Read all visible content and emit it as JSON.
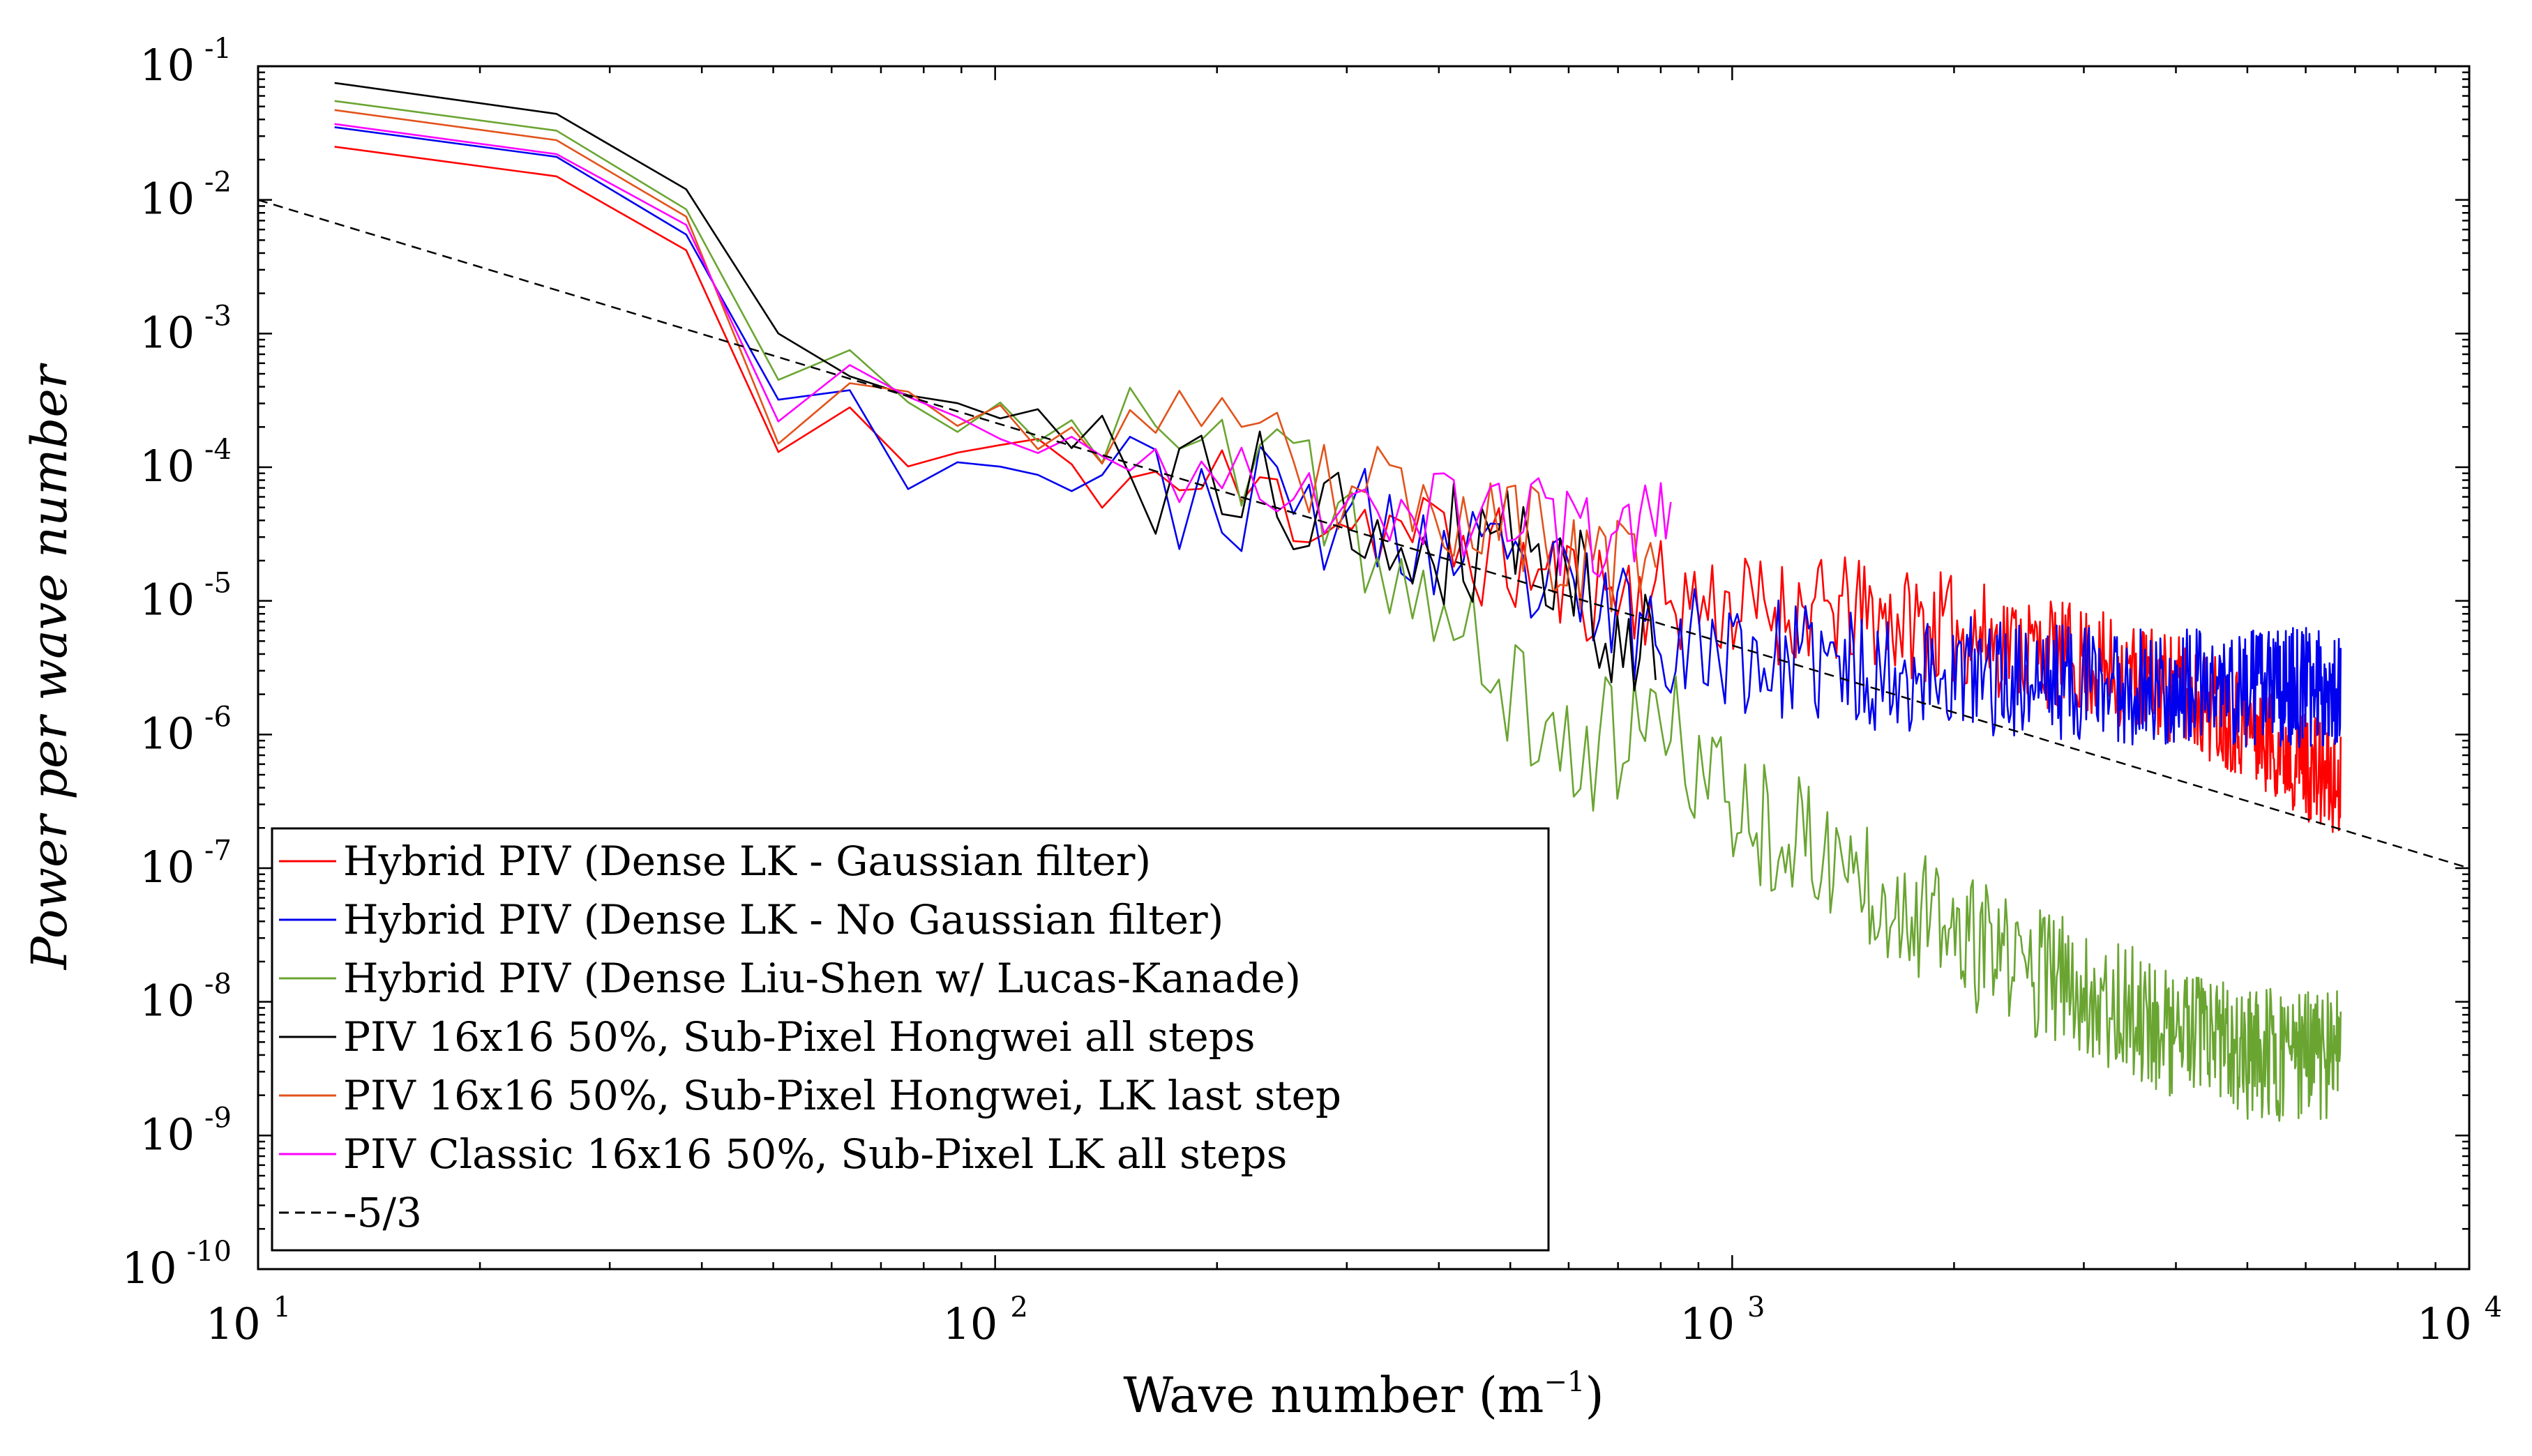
{
  "chart_data": {
    "type": "line",
    "scale": {
      "x": "log",
      "y": "log"
    },
    "xlim": [
      10,
      10000
    ],
    "ylim": [
      1e-10,
      0.1
    ],
    "xlabel": "Wave number (m",
    "xlabel_exponent": "−1",
    "xlabel_close": ")",
    "ylabel": "Power per wave number",
    "x_ticks": [
      {
        "value": 10,
        "base": "10",
        "exp": "1"
      },
      {
        "value": 100,
        "base": "10",
        "exp": "2"
      },
      {
        "value": 1000,
        "base": "10",
        "exp": "3"
      },
      {
        "value": 10000,
        "base": "10",
        "exp": "4"
      }
    ],
    "y_ticks": [
      {
        "value": 0.1,
        "base": "10",
        "exp": "-1"
      },
      {
        "value": 0.01,
        "base": "10",
        "exp": "-2"
      },
      {
        "value": 0.001,
        "base": "10",
        "exp": "-3"
      },
      {
        "value": 0.0001,
        "base": "10",
        "exp": "-4"
      },
      {
        "value": 1e-05,
        "base": "10",
        "exp": "-5"
      },
      {
        "value": 1e-06,
        "base": "10",
        "exp": "-6"
      },
      {
        "value": 1e-07,
        "base": "10",
        "exp": "-7"
      },
      {
        "value": 1e-08,
        "base": "10",
        "exp": "-8"
      },
      {
        "value": 1e-09,
        "base": "10",
        "exp": "-9"
      },
      {
        "value": 1e-10,
        "base": "10",
        "exp": "-10"
      }
    ],
    "legend_location": "bottom-left",
    "series": [
      {
        "name": "Hybrid PIV (Dense LK - Gaussian filter)",
        "color": "#ff0000",
        "style": "solid",
        "k_min": 12.7,
        "k_step": 12.7,
        "k_max": 6700,
        "anchors": [
          [
            12.7,
            0.025
          ],
          [
            25.4,
            0.015
          ],
          [
            38.1,
            0.0042
          ],
          [
            50.8,
            0.00013
          ],
          [
            63.5,
            0.00028
          ],
          [
            76,
            0.0001
          ],
          [
            100,
            0.00014
          ],
          [
            150,
            8e-05
          ],
          [
            200,
            7e-05
          ],
          [
            300,
            4.5e-05
          ],
          [
            400,
            2.8e-05
          ],
          [
            600,
            1.3e-05
          ],
          [
            800,
            1.1e-05
          ],
          [
            1000,
            9e-06
          ],
          [
            1500,
            8e-06
          ],
          [
            2000,
            6e-06
          ],
          [
            3000,
            3.5e-06
          ],
          [
            4000,
            2.2e-06
          ],
          [
            5000,
            1.2e-06
          ],
          [
            6700,
            4e-07
          ]
        ],
        "noise": 0.42,
        "seed": 11
      },
      {
        "name": "Hybrid PIV (Dense LK - No Gaussian filter)",
        "color": "#0000ee",
        "style": "solid",
        "k_min": 12.7,
        "k_step": 12.7,
        "k_max": 6700,
        "anchors": [
          [
            12.7,
            0.035
          ],
          [
            25.4,
            0.021
          ],
          [
            38.1,
            0.0055
          ],
          [
            50.8,
            0.00032
          ],
          [
            63.5,
            0.0004
          ],
          [
            76,
            8e-05
          ],
          [
            100,
            0.00012
          ],
          [
            150,
            8e-05
          ],
          [
            200,
            6e-05
          ],
          [
            300,
            4e-05
          ],
          [
            400,
            2.2e-05
          ],
          [
            600,
            1.1e-05
          ],
          [
            800,
            6e-06
          ],
          [
            1000,
            4e-06
          ],
          [
            1500,
            3e-06
          ],
          [
            2000,
            2.8e-06
          ],
          [
            3000,
            2.5e-06
          ],
          [
            4000,
            2.2e-06
          ],
          [
            5000,
            2.2e-06
          ],
          [
            6700,
            2.3e-06
          ]
        ],
        "noise": 0.45,
        "seed": 23
      },
      {
        "name": "Hybrid PIV (Dense Liu-Shen w/ Lucas-Kanade)",
        "color": "#6aa532",
        "style": "solid",
        "k_min": 12.7,
        "k_step": 12.7,
        "k_max": 6700,
        "anchors": [
          [
            12.7,
            0.055
          ],
          [
            25.4,
            0.033
          ],
          [
            38.1,
            0.0085
          ],
          [
            50.8,
            0.00045
          ],
          [
            63.5,
            0.00075
          ],
          [
            76,
            0.00025
          ],
          [
            100,
            0.00025
          ],
          [
            150,
            0.00017
          ],
          [
            200,
            0.00012
          ],
          [
            300,
            4e-05
          ],
          [
            400,
            7e-06
          ],
          [
            500,
            2e-06
          ],
          [
            600,
            7e-07
          ],
          [
            800,
            1.2e-06
          ],
          [
            1000,
            3e-07
          ],
          [
            1500,
            9e-08
          ],
          [
            2000,
            3e-08
          ],
          [
            3000,
            1.2e-08
          ],
          [
            4000,
            6e-09
          ],
          [
            5000,
            4e-09
          ],
          [
            6700,
            4e-09
          ]
        ],
        "noise": 0.5,
        "seed": 37
      },
      {
        "name": "PIV 16x16 50%, Sub-Pixel Hongwei all steps",
        "color": "#000000",
        "style": "solid",
        "k_min": 12.7,
        "k_step": 12.7,
        "k_max": 800,
        "anchors": [
          [
            12.7,
            0.075
          ],
          [
            25.4,
            0.044
          ],
          [
            38.1,
            0.012
          ],
          [
            50.8,
            0.001
          ],
          [
            63.5,
            0.00045
          ],
          [
            100,
            0.00023
          ],
          [
            150,
            0.0001
          ],
          [
            200,
            7e-05
          ],
          [
            300,
            4e-05
          ],
          [
            400,
            3e-05
          ],
          [
            500,
            3.5e-05
          ],
          [
            600,
            1.5e-05
          ],
          [
            700,
            8e-06
          ],
          [
            800,
            3e-06
          ]
        ],
        "noise": 0.55,
        "seed": 41
      },
      {
        "name": "PIV 16x16 50%, Sub-Pixel Hongwei, LK last step",
        "color": "#e2531c",
        "style": "solid",
        "k_min": 12.7,
        "k_step": 12.7,
        "k_max": 800,
        "anchors": [
          [
            12.7,
            0.047
          ],
          [
            25.4,
            0.028
          ],
          [
            38.1,
            0.0075
          ],
          [
            50.8,
            0.00015
          ],
          [
            63.5,
            0.00045
          ],
          [
            100,
            0.00021
          ],
          [
            150,
            0.00018
          ],
          [
            200,
            0.00015
          ],
          [
            300,
            7e-05
          ],
          [
            400,
            5e-05
          ],
          [
            500,
            4e-05
          ],
          [
            600,
            2e-05
          ],
          [
            800,
            1.5e-05
          ]
        ],
        "noise": 0.4,
        "seed": 53
      },
      {
        "name": "PIV Classic 16x16 50%, Sub-Pixel LK all steps",
        "color": "#ff00ff",
        "style": "solid",
        "k_min": 12.7,
        "k_step": 12.7,
        "k_max": 830,
        "anchors": [
          [
            12.7,
            0.037
          ],
          [
            25.4,
            0.022
          ],
          [
            38.1,
            0.0065
          ],
          [
            50.8,
            0.00022
          ],
          [
            63.5,
            0.00055
          ],
          [
            100,
            0.00017
          ],
          [
            150,
            0.00011
          ],
          [
            200,
            9e-05
          ],
          [
            300,
            6e-05
          ],
          [
            400,
            5e-05
          ],
          [
            500,
            4.5e-05
          ],
          [
            600,
            3e-05
          ],
          [
            800,
            3.5e-05
          ]
        ],
        "noise": 0.35,
        "seed": 67
      },
      {
        "name": "-5/3",
        "color": "#000000",
        "style": "dashed",
        "points": [
          [
            10,
            0.01
          ],
          [
            10000,
            1e-07
          ]
        ]
      }
    ]
  }
}
